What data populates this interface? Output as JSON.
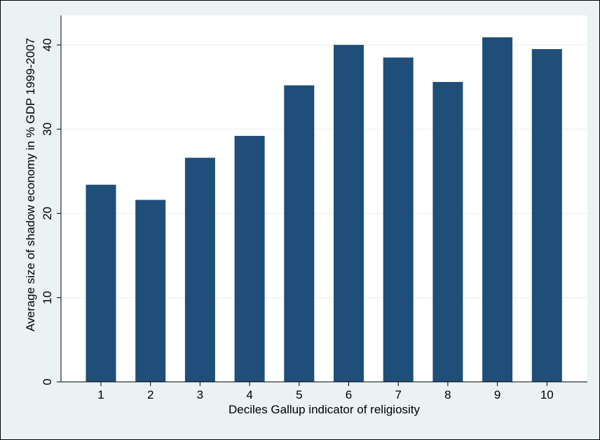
{
  "chart_data": {
    "type": "bar",
    "categories": [
      "1",
      "2",
      "3",
      "4",
      "5",
      "6",
      "7",
      "8",
      "9",
      "10"
    ],
    "values": [
      23.4,
      21.6,
      26.6,
      29.2,
      35.2,
      40.0,
      38.5,
      35.6,
      40.9,
      39.5
    ],
    "xlabel": "Deciles Gallup indicator of religiosity",
    "ylabel": "Average size of shadow economy in % GDP 1999-2007",
    "ylim": [
      0,
      43.5
    ],
    "yticks": [
      "0",
      "10",
      "20",
      "30",
      "40"
    ],
    "grid": true,
    "colors": {
      "bar": "#1f4e79",
      "plot_background": "#ffffff",
      "outer_background": "#eaf2f3",
      "gridline": "#eaf2f3"
    }
  }
}
